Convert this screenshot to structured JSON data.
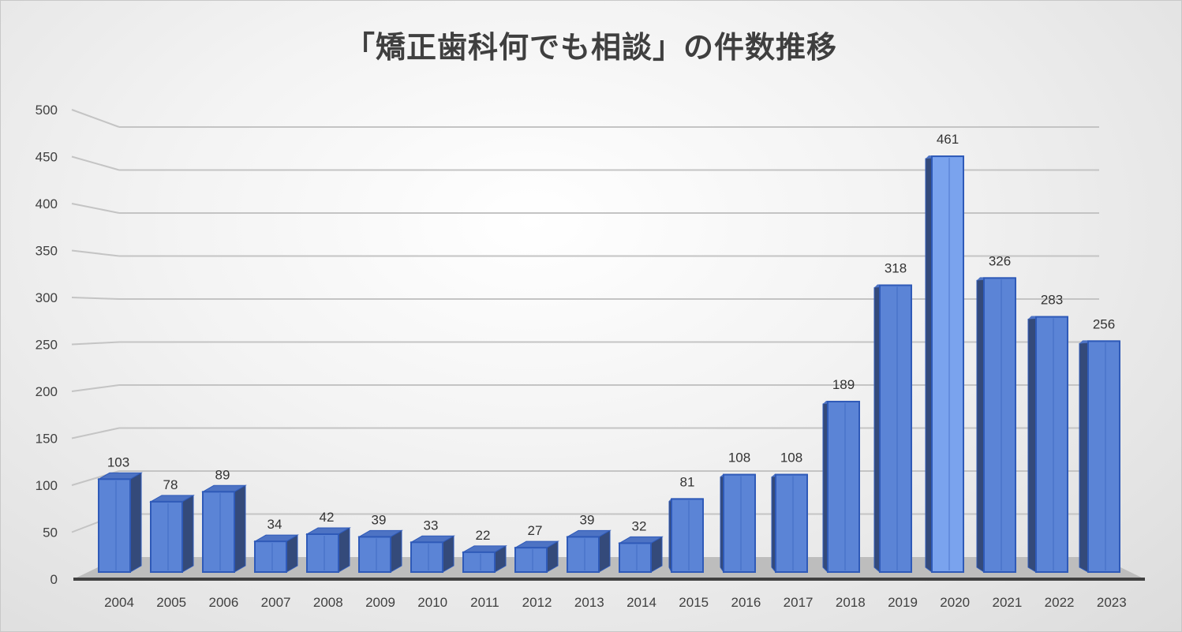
{
  "chart_data": {
    "type": "bar",
    "style": "3d-column",
    "title": "「矯正歯科何でも相談」の件数推移",
    "xlabel": "",
    "ylabel": "",
    "ylim": [
      0,
      500
    ],
    "yticks": [
      0,
      50,
      100,
      150,
      200,
      250,
      300,
      350,
      400,
      450,
      500
    ],
    "grid": true,
    "legend": null,
    "data_labels": true,
    "categories": [
      "2004",
      "2005",
      "2006",
      "2007",
      "2008",
      "2009",
      "2010",
      "2011",
      "2012",
      "2013",
      "2014",
      "2015",
      "2016",
      "2017",
      "2018",
      "2019",
      "2020",
      "2021",
      "2022",
      "2023"
    ],
    "values": [
      103,
      78,
      89,
      34,
      42,
      39,
      33,
      22,
      27,
      39,
      32,
      81,
      108,
      108,
      189,
      318,
      461,
      326,
      283,
      256
    ],
    "colors": {
      "bar_front": "#5b84d6",
      "bar_front_light": "#7aa3ee",
      "bar_side": "#344a7a",
      "bar_top": "#4d73c4",
      "bar_edge": "#2f5ab8",
      "floor": "#bdbdbd",
      "axis": "#404040",
      "grid": "#c4c4c4",
      "text": "#404040"
    }
  }
}
